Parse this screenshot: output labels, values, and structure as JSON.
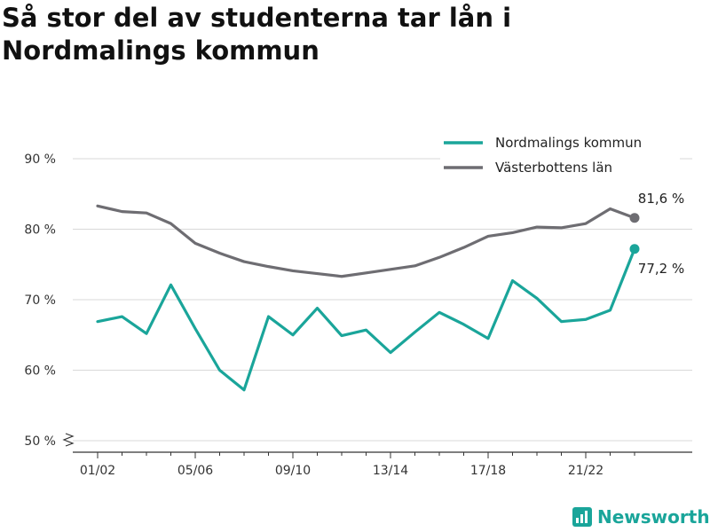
{
  "title": "Så stor del av studenterna tar lån i Nordmalings kommun",
  "brand": {
    "name": "Newsworthy",
    "icon": "newsworthy-logo-icon",
    "color": "#1aa59a"
  },
  "chart_data": {
    "type": "line",
    "title": "Så stor del av studenterna tar lån i Nordmalings kommun",
    "x": [
      "01/02",
      "02/03",
      "03/04",
      "04/05",
      "05/06",
      "06/07",
      "07/08",
      "08/09",
      "09/10",
      "10/11",
      "11/12",
      "12/13",
      "13/14",
      "14/15",
      "15/16",
      "16/17",
      "17/18",
      "18/19",
      "19/20",
      "20/21",
      "21/22",
      "22/23",
      "23/24"
    ],
    "x_tick_labels": [
      "01/02",
      "05/06",
      "09/10",
      "13/14",
      "17/18",
      "21/22"
    ],
    "y_ticks": [
      50,
      60,
      70,
      80,
      90
    ],
    "y_tick_labels": [
      "50 %",
      "60 %",
      "70 %",
      "80 %",
      "90 %"
    ],
    "ylim": [
      50,
      90
    ],
    "y_axis_break": true,
    "grid": true,
    "legend_position": "top-right",
    "series": [
      {
        "name": "Nordmalings kommun",
        "color": "#1aa59a",
        "values": [
          66.9,
          67.6,
          65.2,
          72.1,
          65.9,
          60.0,
          57.2,
          67.6,
          65.0,
          68.8,
          64.9,
          65.7,
          62.5,
          65.4,
          68.2,
          66.5,
          64.5,
          72.7,
          70.2,
          66.9,
          67.2,
          68.5,
          77.2
        ],
        "end_label": "77,2 %"
      },
      {
        "name": "Västerbottens län",
        "color": "#6e6d72",
        "values": [
          83.3,
          82.5,
          82.3,
          80.8,
          78.0,
          76.6,
          75.4,
          74.7,
          74.1,
          73.7,
          73.3,
          73.8,
          74.3,
          74.8,
          76.0,
          77.4,
          79.0,
          79.5,
          80.3,
          80.2,
          80.8,
          82.9,
          81.6
        ],
        "end_label": "81,6 %"
      }
    ]
  }
}
